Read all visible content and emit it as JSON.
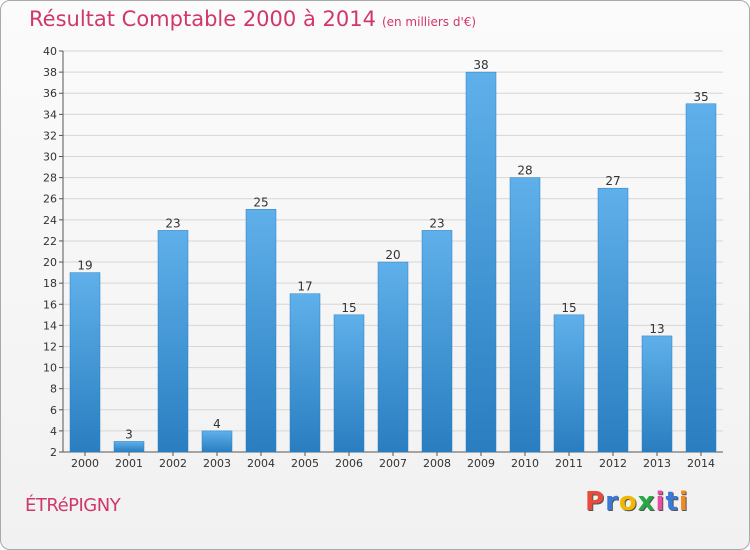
{
  "header": {
    "title": "Résultat Comptable 2000 à 2014",
    "unit": "(en milliers d'€)"
  },
  "footer": {
    "town": "ÉTRéPIGNY",
    "logo": "Proxiti"
  },
  "colors": {
    "accent": "#d0376a",
    "bar_top": "#5fb0ea",
    "bar_bottom": "#2a7ec0",
    "logo_letters": [
      "#e74c3c",
      "#3a7ad6",
      "#f0b800",
      "#27a844",
      "#e84e9f",
      "#3a7ad6",
      "#f08a24"
    ]
  },
  "chart_data": {
    "type": "bar",
    "title": "Résultat Comptable 2000 à 2014",
    "ylabel": "(en milliers d'€)",
    "xlabel": "",
    "categories": [
      "2000",
      "2001",
      "2002",
      "2003",
      "2004",
      "2005",
      "2006",
      "2007",
      "2008",
      "2009",
      "2010",
      "2011",
      "2012",
      "2013",
      "2014"
    ],
    "values": [
      19,
      3,
      23,
      4,
      25,
      17,
      15,
      20,
      23,
      38,
      28,
      15,
      27,
      13,
      35
    ],
    "ylim": [
      2,
      40
    ],
    "yticks": [
      2,
      4,
      6,
      8,
      10,
      12,
      14,
      16,
      18,
      20,
      22,
      24,
      26,
      28,
      30,
      32,
      34,
      36,
      38,
      40
    ],
    "grid": true
  }
}
